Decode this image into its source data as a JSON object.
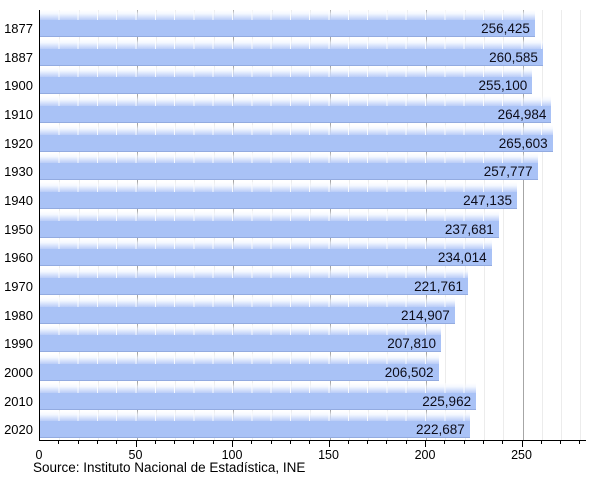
{
  "chart_data": {
    "type": "bar",
    "orientation": "horizontal",
    "title": "",
    "categories": [
      "1877",
      "1887",
      "1900",
      "1910",
      "1920",
      "1930",
      "1940",
      "1950",
      "1960",
      "1970",
      "1980",
      "1990",
      "2000",
      "2010",
      "2020"
    ],
    "values": [
      256425,
      260585,
      255100,
      264984,
      265603,
      257777,
      247135,
      237681,
      234014,
      221761,
      214907,
      207810,
      206502,
      225962,
      222687
    ],
    "value_labels": [
      "256,425",
      "260,585",
      "255,100",
      "264,984",
      "265,603",
      "257,777",
      "247,135",
      "237,681",
      "234,014",
      "221,761",
      "214,907",
      "207,810",
      "206,502",
      "225,962",
      "222,687"
    ],
    "x_ticks": [
      0,
      50,
      100,
      150,
      200,
      250
    ],
    "x_tick_labels": [
      "0",
      "50",
      "100",
      "150",
      "200",
      "250"
    ],
    "x_minor_step": 10,
    "xlim": [
      0,
      283
    ],
    "axis_unit": "thousands",
    "grid": true,
    "legend": "none",
    "bar_color": "#a9c2f6",
    "bar_glow_color": "#b9ccf8",
    "grid_minor_color": "#ececec",
    "grid_major_color": "#a6a6a6",
    "axis_color": "#000000",
    "label_color": "#0d0d1a",
    "source": "Source: Instituto Nacional de Estadística, INE"
  }
}
